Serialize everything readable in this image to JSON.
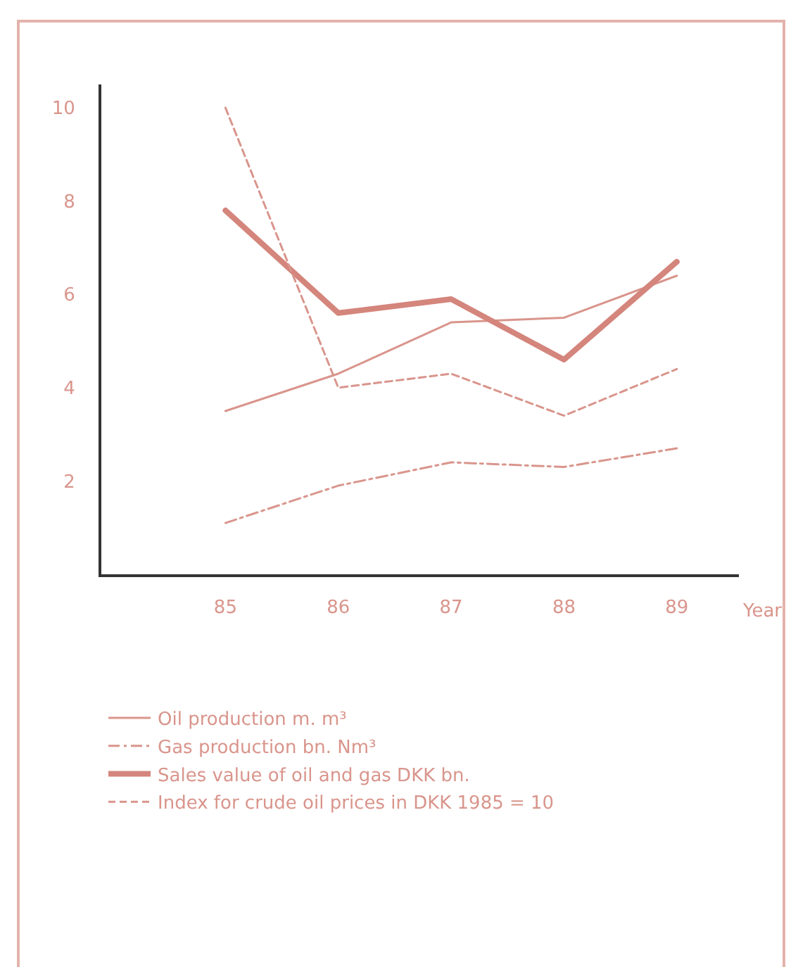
{
  "chart_data": {
    "type": "line",
    "xlabel": "Year",
    "x": [
      85,
      86,
      87,
      88,
      89
    ],
    "xlim": [
      83.9,
      89.55
    ],
    "xticks": [
      85,
      86,
      87,
      88,
      89
    ],
    "ylim": [
      0,
      10.5
    ],
    "yticks": [
      2,
      4,
      6,
      8,
      10
    ],
    "grid": false,
    "legend": "bottom",
    "marker": "none",
    "series": [
      {
        "name": "Oil production m. m³",
        "color": "#d9958c",
        "line_style": "solid",
        "values": [
          3.5,
          4.3,
          5.4,
          5.5,
          6.4
        ]
      },
      {
        "name": "Gas production bn. Nm³",
        "color": "#d9958c",
        "line_style": "dashdot",
        "values": [
          1.1,
          1.9,
          2.4,
          2.3,
          2.7
        ]
      },
      {
        "name": "Sales value of oil and gas DKK bn.",
        "color": "#d4857c",
        "line_style": "solid",
        "values": [
          7.8,
          5.6,
          5.9,
          4.6,
          6.7
        ]
      },
      {
        "name": "Index for crude oil prices in DKK 1985 = 10",
        "color": "#d9958c",
        "line_style": "dashed",
        "values": [
          10,
          4.0,
          4.3,
          3.4,
          4.4
        ]
      }
    ]
  }
}
